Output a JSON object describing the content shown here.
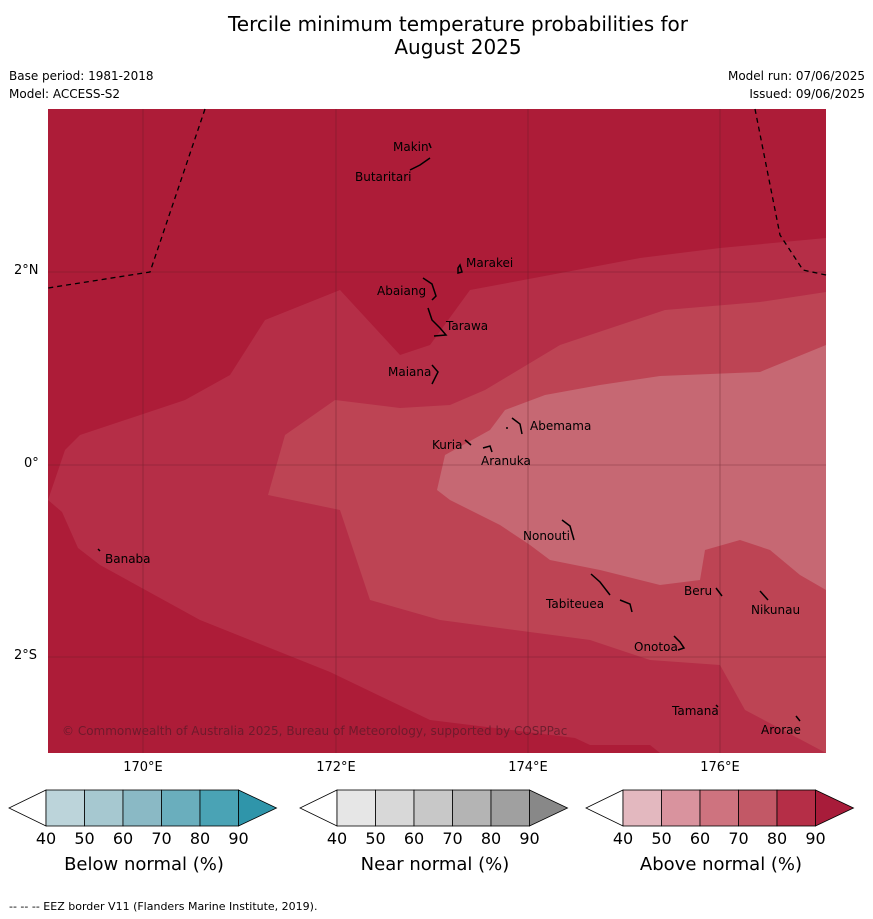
{
  "title_line1": "Tercile minimum temperature probabilities for",
  "title_line2": "August 2025",
  "meta": {
    "base_period": "Base period: 1981-2018",
    "model": "Model: ACCESS-S2",
    "model_run": "Model run: 07/06/2025",
    "issued": "Issued: 09/06/2025"
  },
  "copyright": "© Commonwealth of Australia 2025, Bureau of Meteorology, supported by COSPPac",
  "footer": "-- -- -- EEZ border V11 (Flanders Marine Institute, 2019).",
  "lat_labels": [
    "2°N",
    "0°",
    "2°S"
  ],
  "lon_labels": [
    "170°E",
    "172°E",
    "174°E",
    "176°E"
  ],
  "places": {
    "makin": "Makin",
    "butaritari": "Butaritari",
    "marakei": "Marakei",
    "abaiang": "Abaiang",
    "tarawa": "Tarawa",
    "maiana": "Maiana",
    "abemama": "Abemama",
    "kuria": "Kuria",
    "aranuka": "Aranuka",
    "banaba": "Banaba",
    "nonouti": "Nonouti",
    "beru": "Beru",
    "nikunau": "Nikunau",
    "tabiteuea": "Tabiteuea",
    "onotoa": "Onotoa",
    "tamana": "Tamana",
    "arorae": "Arorae"
  },
  "colorbars": {
    "below": {
      "title": "Below normal (%)",
      "ticks": [
        "40",
        "50",
        "60",
        "70",
        "80",
        "90"
      ],
      "colors": [
        "#ffffff",
        "#bcd4da",
        "#a6c8d0",
        "#8ab9c5",
        "#6aaebd",
        "#4aa3b5",
        "#2f95aa"
      ]
    },
    "near": {
      "title": "Near normal (%)",
      "ticks": [
        "40",
        "50",
        "60",
        "70",
        "80",
        "90"
      ],
      "colors": [
        "#ffffff",
        "#e6e6e6",
        "#d8d8d8",
        "#c8c8c8",
        "#b4b4b4",
        "#a0a0a0",
        "#888888"
      ]
    },
    "above": {
      "title": "Above normal (%)",
      "ticks": [
        "40",
        "50",
        "60",
        "70",
        "80",
        "90"
      ],
      "colors": [
        "#ffffff",
        "#e3b8bf",
        "#d9939e",
        "#ce737f",
        "#c25866",
        "#b52e47",
        "#a81c3a"
      ]
    }
  },
  "map_colors": {
    "level_90": "#ad1c38",
    "level_80": "#b52e47",
    "level_70": "#bd4454",
    "level_60": "#c66873"
  }
}
